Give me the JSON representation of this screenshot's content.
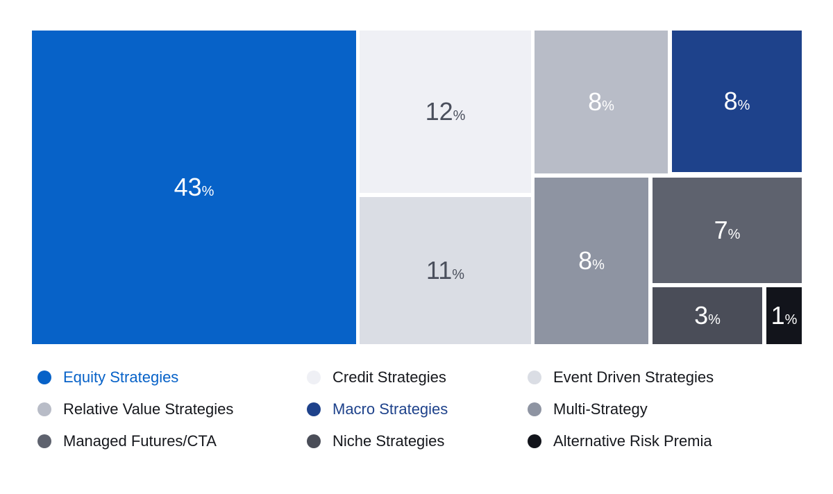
{
  "chart_data": {
    "type": "treemap",
    "unit": "%",
    "series": [
      {
        "name": "Equity Strategies",
        "value": 43,
        "color": "#0762c8",
        "text_color": "#ffffff",
        "legend_text_color": "#0762c8"
      },
      {
        "name": "Credit Strategies",
        "value": 12,
        "color": "#eff0f5",
        "text_color": "#4a4f5c",
        "legend_text_color": "#15171c"
      },
      {
        "name": "Event Driven Strategies",
        "value": 11,
        "color": "#dadde4",
        "text_color": "#4a4f5c",
        "legend_text_color": "#15171c"
      },
      {
        "name": "Relative Value Strategies",
        "value": 8,
        "color": "#b8bcc7",
        "text_color": "#ffffff",
        "legend_text_color": "#15171c"
      },
      {
        "name": "Macro Strategies",
        "value": 8,
        "color": "#1e428b",
        "text_color": "#ffffff",
        "legend_text_color": "#1e428b"
      },
      {
        "name": "Multi-Strategy",
        "value": 8,
        "color": "#8e94a2",
        "text_color": "#ffffff",
        "legend_text_color": "#15171c"
      },
      {
        "name": "Managed Futures/CTA",
        "value": 7,
        "color": "#5e626e",
        "text_color": "#ffffff",
        "legend_text_color": "#15171c"
      },
      {
        "name": "Niche Strategies",
        "value": 3,
        "color": "#4a4d58",
        "text_color": "#ffffff",
        "legend_text_color": "#15171c"
      },
      {
        "name": "Alternative Risk Premia",
        "value": 1,
        "color": "#12141b",
        "text_color": "#ffffff",
        "legend_text_color": "#15171c"
      }
    ],
    "legend_position": "bottom"
  }
}
